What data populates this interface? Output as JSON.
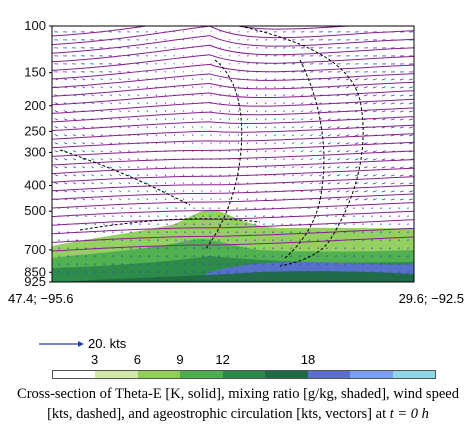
{
  "chart_data": {
    "type": "contour",
    "y_axis": {
      "ticks": [
        "100",
        "150",
        "200",
        "250",
        "300",
        "400",
        "500",
        "700",
        "850",
        "925"
      ],
      "scale": "log-pressure",
      "range": [
        925,
        100
      ]
    },
    "x_endpoints": {
      "left": "47.4; −95.6",
      "right": "29.6; −92.5"
    },
    "reference_vector": {
      "label": "20. kts"
    },
    "colorbar": {
      "ticks": [
        "3",
        "6",
        "9",
        "12",
        "18"
      ],
      "colors": [
        "#ffffff",
        "#cfe9a8",
        "#8fcf5a",
        "#4dae4f",
        "#2b8a4a",
        "#1f6a42",
        "#5a6fd0",
        "#7b9ff0",
        "#8fd6e8"
      ]
    },
    "series_styles": {
      "theta_e": {
        "kind": "solid contours",
        "color": "#8a1f8f"
      },
      "mixing_ratio": {
        "kind": "shaded",
        "color": "#5fbf3f"
      },
      "wind_speed": {
        "kind": "dashed contours",
        "color": "#000000"
      },
      "ageostrophic_circulation": {
        "kind": "vectors",
        "color": "#2a3fa8"
      }
    },
    "caption": "Cross-section of Theta-E [K, solid], mixing ratio [g/kg, shaded], wind speed [kts, dashed], and ageostrophic circulation [kts, vectors] at",
    "caption_math": "t = 0 h"
  }
}
